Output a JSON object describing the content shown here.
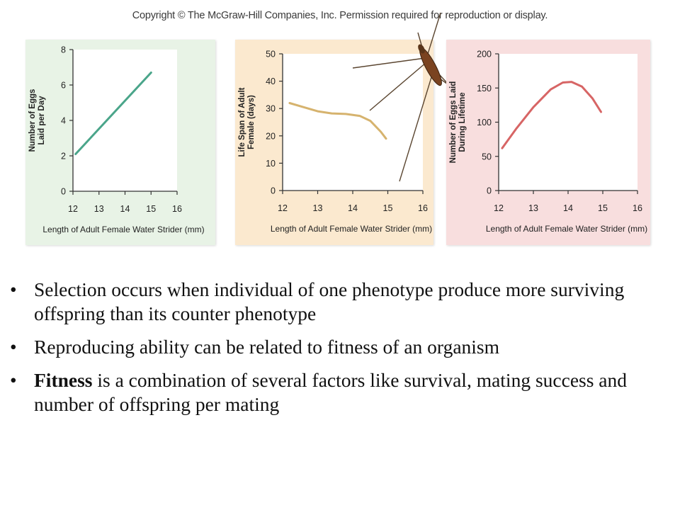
{
  "copyright": "Copyright © The McGraw-Hill Companies, Inc. Permission required for reproduction or display.",
  "chart_data": [
    {
      "type": "line",
      "background": "#e8f3e6",
      "line_color": "#4aa58a",
      "xlabel": "Length of Adult Female Water Strider (mm)",
      "ylabel": [
        "Number of Eggs",
        "Laid per Day"
      ],
      "xlim": [
        12,
        16
      ],
      "ylim": [
        0,
        8
      ],
      "xticks": [
        "12",
        "13",
        "14",
        "15",
        "16"
      ],
      "yticks": [
        "0",
        "2",
        "4",
        "6",
        "8"
      ],
      "x": [
        12.1,
        15
      ],
      "y": [
        2.1,
        6.7
      ]
    },
    {
      "type": "line",
      "background": "#fbe9cf",
      "line_color": "#d6b36e",
      "xlabel": "Length of Adult Female Water Strider (mm)",
      "ylabel": [
        "Life Span of Adult",
        "Female (days)"
      ],
      "xlim": [
        12,
        16
      ],
      "ylim": [
        0,
        50
      ],
      "xticks": [
        "12",
        "13",
        "14",
        "15",
        "16"
      ],
      "yticks": [
        "0",
        "10",
        "20",
        "30",
        "40",
        "50"
      ],
      "x": [
        12.2,
        12.6,
        13.0,
        13.4,
        13.8,
        14.2,
        14.5,
        14.8,
        14.95
      ],
      "y": [
        32.0,
        30.5,
        29.0,
        28.2,
        28.0,
        27.3,
        25.5,
        21.5,
        19.0
      ]
    },
    {
      "type": "line",
      "background": "#f8dede",
      "line_color": "#d76565",
      "xlabel": "Length of Adult Female Water Strider (mm)",
      "ylabel": [
        "Number of Eggs Laid",
        "During Lifetime"
      ],
      "xlim": [
        12,
        16
      ],
      "ylim": [
        0,
        200
      ],
      "xticks": [
        "12",
        "13",
        "14",
        "15",
        "16"
      ],
      "yticks": [
        "0",
        "50",
        "100",
        "150",
        "200"
      ],
      "x": [
        12.1,
        12.5,
        13.0,
        13.5,
        13.85,
        14.1,
        14.4,
        14.7,
        14.95
      ],
      "y": [
        62,
        90,
        122,
        148,
        158,
        159,
        152,
        135,
        115
      ]
    }
  ],
  "bullets": [
    {
      "bold": "",
      "text": "Selection occurs when individual of one phenotype produce more surviving offspring than its counter phenotype"
    },
    {
      "bold": "",
      "text": "Reproducing ability can be related to fitness of an organism"
    },
    {
      "bold": "Fitness",
      "text": " is a combination of several factors like survival, mating success and number of offspring per mating"
    }
  ]
}
